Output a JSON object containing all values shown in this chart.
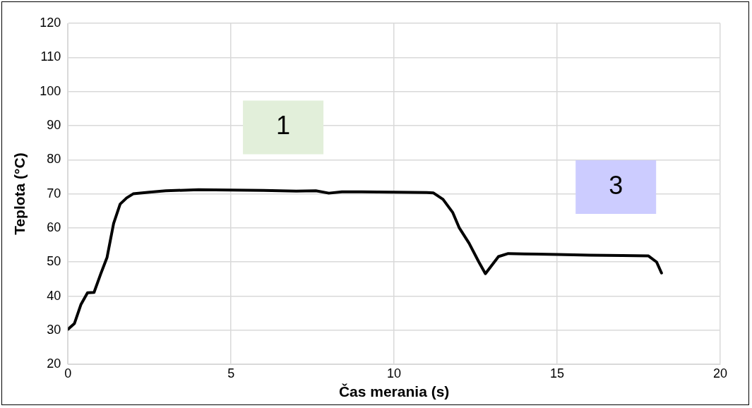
{
  "chart_data": {
    "type": "line",
    "xlabel": "Čas merania (s)",
    "ylabel": "Teplota (°C)",
    "x": [
      0,
      0.2,
      0.4,
      0.6,
      0.8,
      1.0,
      1.2,
      1.4,
      1.6,
      1.8,
      2.0,
      2.5,
      3,
      4,
      5,
      6,
      7,
      7.6,
      8,
      8.4,
      9,
      10,
      11,
      11.2,
      11.5,
      11.8,
      12,
      12.3,
      12.6,
      12.8,
      13.2,
      13.5,
      14,
      15,
      16,
      17,
      17.8,
      18.05,
      18.2
    ],
    "series": [
      {
        "color": "#000000",
        "values": [
          30.3,
          32,
          37.6,
          41,
          41.1,
          46.4,
          51.4,
          61.3,
          67,
          68.8,
          70,
          70.5,
          70.9,
          71.2,
          71.1,
          71,
          70.8,
          70.9,
          70.2,
          70.6,
          70.6,
          70.5,
          70.4,
          70.3,
          68.4,
          64.5,
          60,
          55.5,
          50,
          46.6,
          51.6,
          52.5,
          52.4,
          52.2,
          52,
          51.9,
          51.8,
          50,
          46.8
        ]
      }
    ],
    "xlim": [
      0,
      20
    ],
    "xticks": [
      0,
      5,
      10,
      15,
      20
    ],
    "ylim": [
      20,
      120
    ],
    "yticks": [
      20,
      30,
      40,
      50,
      60,
      70,
      80,
      90,
      100,
      110,
      120
    ],
    "grid": true,
    "legend": false,
    "marker": "none",
    "line_style": "solid",
    "annotations": [
      "1",
      "3"
    ]
  }
}
